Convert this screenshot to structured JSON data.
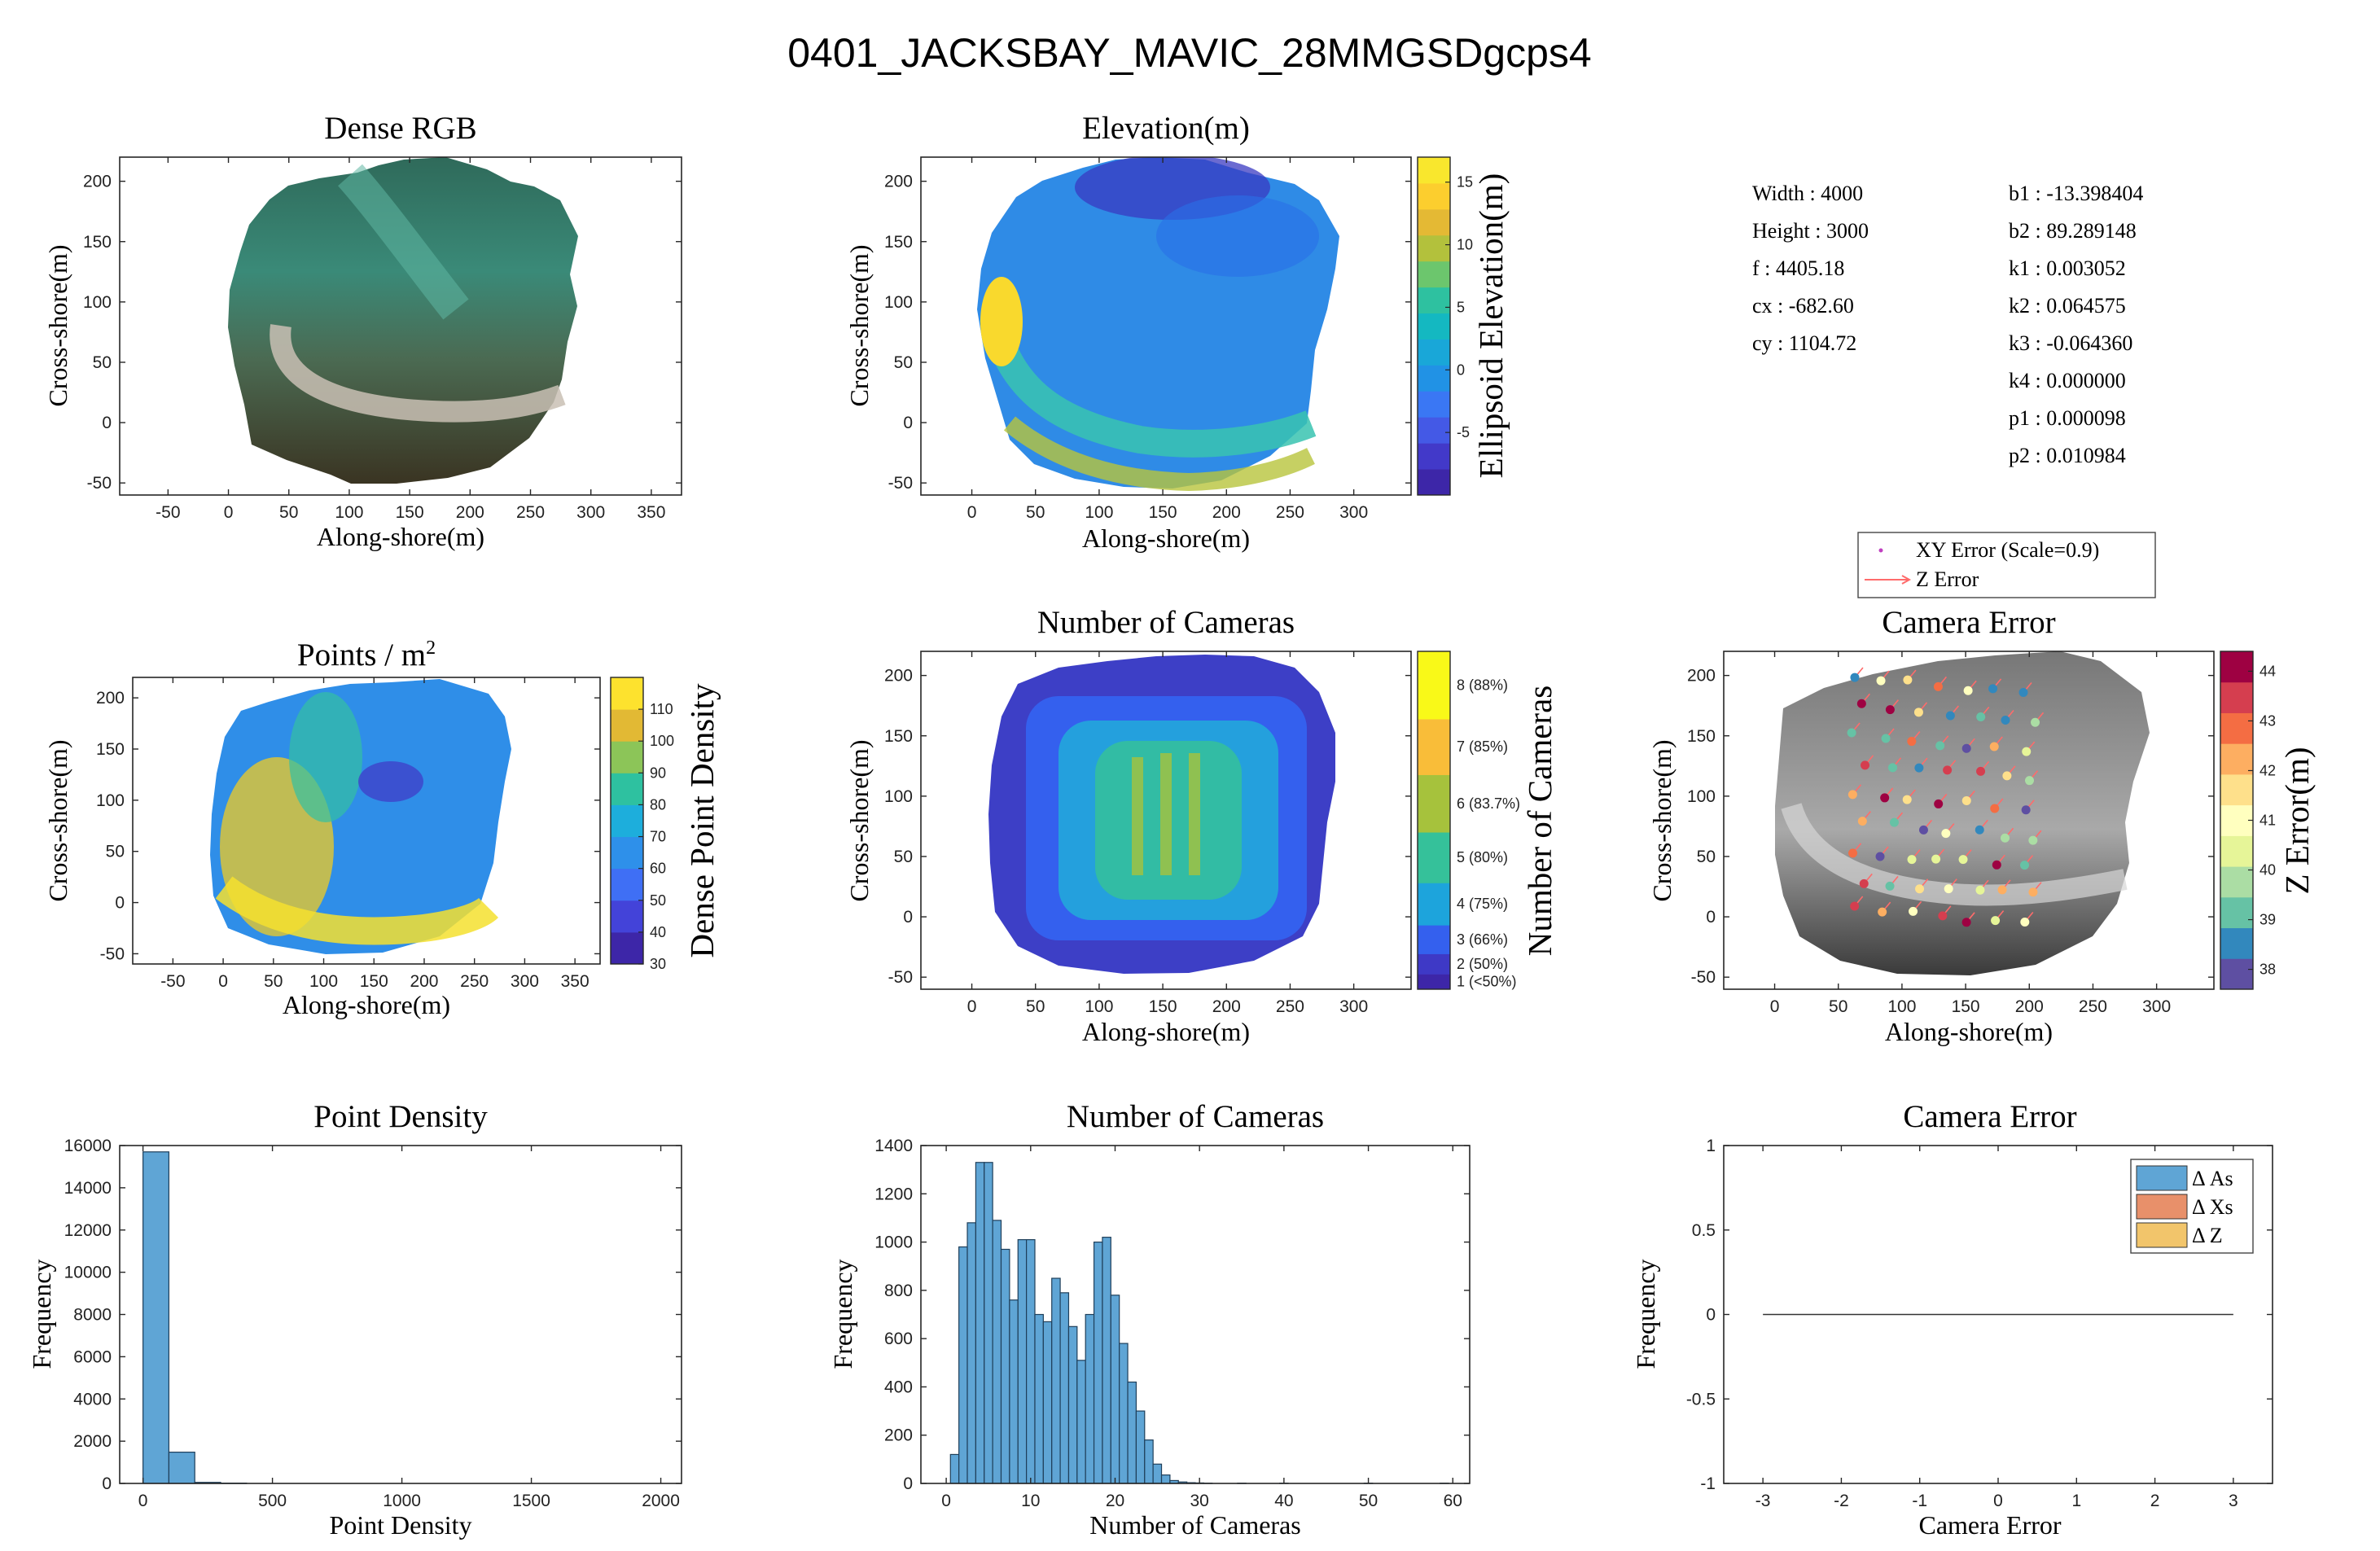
{
  "figure": {
    "title": "0401_JACKSBAY_MAVIC_28MMGSDgcps4"
  },
  "camera_info": {
    "left": [
      "Width : 4000",
      "Height : 3000",
      "f : 4405.18",
      "cx : -682.60",
      "cy : 1104.72"
    ],
    "right": [
      "b1 : -13.398404",
      "b2 : 89.289148",
      "k1 : 0.003052",
      "k2 : 0.064575",
      "k3 : -0.064360",
      "k4 : 0.000000",
      "p1 : 0.000098",
      "p2 : 0.010984"
    ]
  },
  "colors": {
    "hist_fill": "#5fa5d5",
    "hist_edge": "#1f3f5a",
    "legend_as": "#5fa5d5",
    "legend_xs": "#e8906a",
    "legend_z": "#f2c56b",
    "xy_marker": "#c040c0",
    "z_arrow": "#ff6b6b"
  },
  "chart_data": [
    {
      "id": "dense-rgb",
      "type": "image",
      "title": "Dense RGB",
      "xlabel": "Along-shore(m)",
      "ylabel": "Cross-shore(m)",
      "xlim": [
        -90,
        375
      ],
      "ylim": [
        -60,
        220
      ],
      "xticks": [
        -50,
        0,
        50,
        100,
        150,
        200,
        250,
        300,
        350
      ],
      "yticks": [
        -50,
        0,
        50,
        100,
        150,
        200
      ]
    },
    {
      "id": "elevation",
      "type": "heatmap",
      "title": "Elevation(m)",
      "xlabel": "Along-shore(m)",
      "ylabel": "Cross-shore(m)",
      "xlim": [
        -40,
        345
      ],
      "ylim": [
        -60,
        220
      ],
      "xticks": [
        0,
        50,
        100,
        150,
        200,
        250,
        300
      ],
      "yticks": [
        -50,
        0,
        50,
        100,
        150,
        200
      ],
      "colorbar": {
        "label": "Ellipsoid Elevation(m)",
        "range": [
          -10,
          17
        ],
        "ticks": [
          -5,
          0,
          5,
          10,
          15
        ],
        "colors": [
          "#3d26a8",
          "#4239c9",
          "#4459e6",
          "#3a77f4",
          "#2192e5",
          "#19a7d8",
          "#14b8c1",
          "#2ec1a0",
          "#6cc66d",
          "#b3c13c",
          "#e4b934",
          "#fcce2e",
          "#f9e72d"
        ]
      }
    },
    {
      "id": "points-density-map",
      "type": "heatmap",
      "title": "Points / m",
      "title_sup": "2",
      "xlabel": "Along-shore(m)",
      "ylabel": "Cross-shore(m)",
      "xlim": [
        -90,
        375
      ],
      "ylim": [
        -60,
        220
      ],
      "xticks": [
        -50,
        0,
        50,
        100,
        150,
        200,
        250,
        300,
        350
      ],
      "yticks": [
        -50,
        0,
        50,
        100,
        150,
        200
      ],
      "colorbar": {
        "label": "Dense Point Density",
        "range": [
          30,
          120
        ],
        "ticks": [
          30,
          40,
          50,
          60,
          70,
          80,
          90,
          100,
          110
        ],
        "colors": [
          "#3d26a8",
          "#4343d9",
          "#3f6ff5",
          "#2e90ea",
          "#1daedc",
          "#2ec1a0",
          "#8cc558",
          "#e2b934",
          "#fde22e"
        ]
      }
    },
    {
      "id": "number-of-cameras-map",
      "type": "heatmap",
      "title": "Number of Cameras",
      "xlabel": "Along-shore(m)",
      "ylabel": "Cross-shore(m)",
      "xlim": [
        -40,
        345
      ],
      "ylim": [
        -60,
        220
      ],
      "xticks": [
        0,
        50,
        100,
        150,
        200,
        250,
        300
      ],
      "yticks": [
        -50,
        0,
        50,
        100,
        150,
        200
      ],
      "colorbar": {
        "label": "Number of Cameras",
        "bands": [
          {
            "label": "1 (<50%)",
            "color": "#3d26a8"
          },
          {
            "label": "2 (50%)",
            "color": "#3e39c6"
          },
          {
            "label": "3 (66%)",
            "color": "#3460ee"
          },
          {
            "label": "4 (75%)",
            "color": "#1da4dc"
          },
          {
            "label": "5 (80%)",
            "color": "#35c19a"
          },
          {
            "label": "6 (83.7%)",
            "color": "#a6c23c"
          },
          {
            "label": "7 (85%)",
            "color": "#f9bd39"
          },
          {
            "label": "8 (88%)",
            "color": "#f9f918"
          }
        ]
      }
    },
    {
      "id": "camera-error-map",
      "type": "scatter",
      "title": "Camera Error",
      "xlabel": "Along-shore(m)",
      "ylabel": "Cross-shore(m)",
      "xlim": [
        -40,
        345
      ],
      "ylim": [
        -60,
        220
      ],
      "xticks": [
        0,
        50,
        100,
        150,
        200,
        250,
        300
      ],
      "yticks": [
        -50,
        0,
        50,
        100,
        150,
        200
      ],
      "legend": [
        "XY Error (Scale=0.9)",
        "Z Error"
      ],
      "colorbar": {
        "label": "Z Error(m)",
        "range": [
          37.6,
          44.4
        ],
        "ticks": [
          38,
          39,
          40,
          41,
          42,
          43,
          44
        ],
        "colors": [
          "#5e4fa2",
          "#3288bd",
          "#66c2a5",
          "#abdda4",
          "#e6f598",
          "#ffffbf",
          "#fee08b",
          "#fdae61",
          "#f46d43",
          "#d53e4f",
          "#9e0142"
        ]
      }
    },
    {
      "id": "point-density-hist",
      "type": "bar",
      "title": "Point Density",
      "xlabel": "Point Density",
      "ylabel": "Frequency",
      "xlim": [
        -90,
        2080
      ],
      "ylim": [
        0,
        16000
      ],
      "xticks": [
        0,
        500,
        1000,
        1500,
        2000
      ],
      "yticks": [
        0,
        2000,
        4000,
        6000,
        8000,
        10000,
        12000,
        14000,
        16000
      ],
      "bin_edges": [
        0,
        100,
        200,
        300,
        400
      ],
      "values": [
        15700,
        1480,
        50,
        15
      ]
    },
    {
      "id": "number-of-cameras-hist",
      "type": "bar",
      "title": "Number of Cameras",
      "xlabel": "Number of Cameras",
      "ylabel": "Frequency",
      "xlim": [
        -3,
        62
      ],
      "ylim": [
        0,
        1400
      ],
      "xticks": [
        0,
        10,
        20,
        30,
        40,
        50,
        60
      ],
      "yticks": [
        0,
        200,
        400,
        600,
        800,
        1000,
        1200,
        1400
      ],
      "bin_start": 1,
      "bin_width": 1,
      "values": [
        120,
        980,
        1080,
        1330,
        1330,
        1090,
        970,
        760,
        1010,
        1010,
        700,
        670,
        850,
        790,
        650,
        510,
        700,
        1000,
        1020,
        780,
        580,
        420,
        300,
        180,
        80,
        35,
        12,
        6,
        3,
        2,
        1,
        0,
        0,
        0,
        1,
        0,
        0,
        0,
        0,
        1,
        0,
        0,
        0,
        0,
        0,
        0,
        0,
        0,
        0,
        1,
        0,
        0,
        0,
        0,
        0,
        0,
        0,
        0,
        1
      ]
    },
    {
      "id": "camera-error-hist",
      "type": "line",
      "title": "Camera Error",
      "xlabel": "Camera Error",
      "ylabel": "Frequency",
      "xlim": [
        -3.5,
        3.5
      ],
      "ylim": [
        -1,
        1
      ],
      "xticks": [
        -3,
        -2,
        -1,
        0,
        1,
        2,
        3
      ],
      "yticks": [
        -1,
        -0.5,
        0,
        0.5,
        1
      ],
      "legend": [
        "Δ As",
        "Δ Xs",
        "Δ Z"
      ],
      "line": {
        "x": [
          -3,
          3
        ],
        "y": [
          0,
          0
        ]
      }
    }
  ]
}
